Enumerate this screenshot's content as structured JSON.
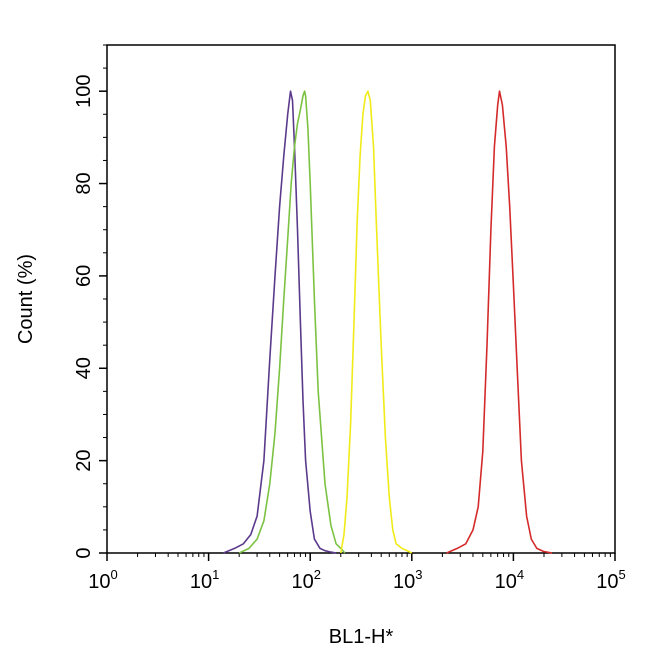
{
  "chart_data": {
    "type": "line",
    "title": "",
    "xlabel": "BL1-H*",
    "ylabel": "Count  (%)",
    "xscale": "log",
    "xlim": [
      1,
      100000
    ],
    "ylim": [
      0,
      110
    ],
    "x_ticks": [
      {
        "base": "10",
        "exp": "0",
        "value": 1
      },
      {
        "base": "10",
        "exp": "1",
        "value": 10
      },
      {
        "base": "10",
        "exp": "2",
        "value": 100
      },
      {
        "base": "10",
        "exp": "3",
        "value": 1000
      },
      {
        "base": "10",
        "exp": "4",
        "value": 10000
      },
      {
        "base": "10",
        "exp": "5",
        "value": 100000
      }
    ],
    "y_ticks": [
      "0",
      "20",
      "40",
      "60",
      "80",
      "100"
    ],
    "grid": false,
    "legend": "none",
    "series": [
      {
        "color": "#5b3a8c",
        "x": [
          14,
          18,
          22,
          26,
          30,
          35,
          40,
          45,
          50,
          55,
          60,
          64,
          67,
          70,
          75,
          80,
          85,
          90,
          100,
          110,
          125,
          140,
          160,
          180
        ],
        "y": [
          0,
          1,
          2,
          4,
          8,
          20,
          42,
          60,
          75,
          86,
          95,
          100,
          98,
          88,
          70,
          50,
          33,
          20,
          9,
          3,
          1,
          0.5,
          0.2,
          0
        ]
      },
      {
        "color": "#7cc242",
        "x": [
          20,
          25,
          30,
          35,
          40,
          45,
          50,
          55,
          60,
          65,
          70,
          75,
          80,
          85,
          88,
          90,
          95,
          100,
          110,
          120,
          140,
          160,
          180,
          200,
          220
        ],
        "y": [
          0,
          1,
          3,
          7,
          15,
          26,
          40,
          55,
          68,
          80,
          88,
          93,
          96,
          99,
          100,
          99,
          92,
          80,
          55,
          35,
          15,
          6,
          2,
          1,
          0
        ]
      },
      {
        "color": "#f0eb18",
        "x": [
          200,
          215,
          230,
          250,
          270,
          290,
          310,
          330,
          350,
          370,
          390,
          420,
          450,
          500,
          550,
          600,
          650,
          700,
          800,
          900,
          1000
        ],
        "y": [
          0,
          4,
          12,
          28,
          50,
          72,
          86,
          95,
          99,
          100,
          98,
          88,
          70,
          45,
          25,
          12,
          5,
          2,
          1,
          0.5,
          0
        ]
      },
      {
        "color": "#d42a2a",
        "x": [
          2200,
          2800,
          3400,
          4000,
          4500,
          5000,
          5500,
          6000,
          6500,
          7000,
          7300,
          7800,
          8500,
          9200,
          10000,
          11000,
          12000,
          13500,
          15000,
          17000,
          20000,
          24000
        ],
        "y": [
          0,
          1,
          2,
          5,
          10,
          22,
          45,
          70,
          88,
          97,
          100,
          97,
          88,
          75,
          58,
          38,
          20,
          8,
          3,
          1,
          0.3,
          0
        ]
      }
    ]
  }
}
